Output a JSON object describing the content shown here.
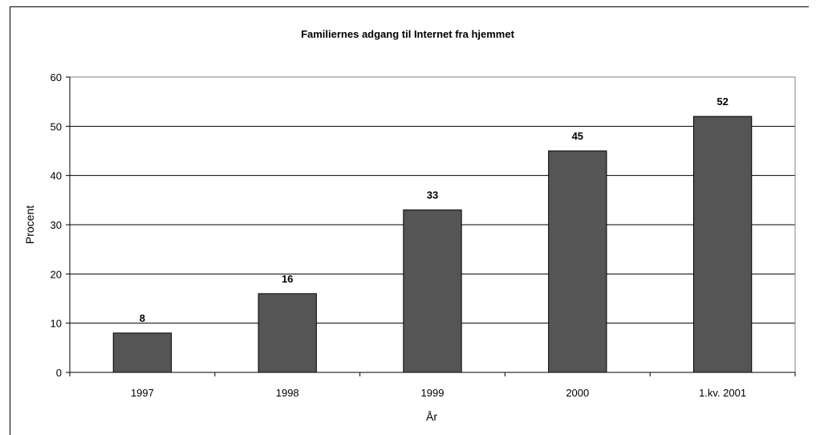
{
  "chart_data": {
    "type": "bar",
    "title": "Familiernes adgang til Internet fra hjemmet",
    "xlabel": "År",
    "ylabel": "Procent",
    "categories": [
      "1997",
      "1998",
      "1999",
      "2000",
      "1.kv. 2001"
    ],
    "values": [
      8,
      16,
      33,
      45,
      52
    ],
    "data_labels": [
      "8",
      "16",
      "33",
      "45",
      "52"
    ],
    "ylim": [
      0,
      60
    ],
    "yticks": [
      0,
      10,
      20,
      30,
      40,
      50,
      60
    ],
    "grid": true,
    "legend": "none",
    "bar_color": "#555555"
  }
}
